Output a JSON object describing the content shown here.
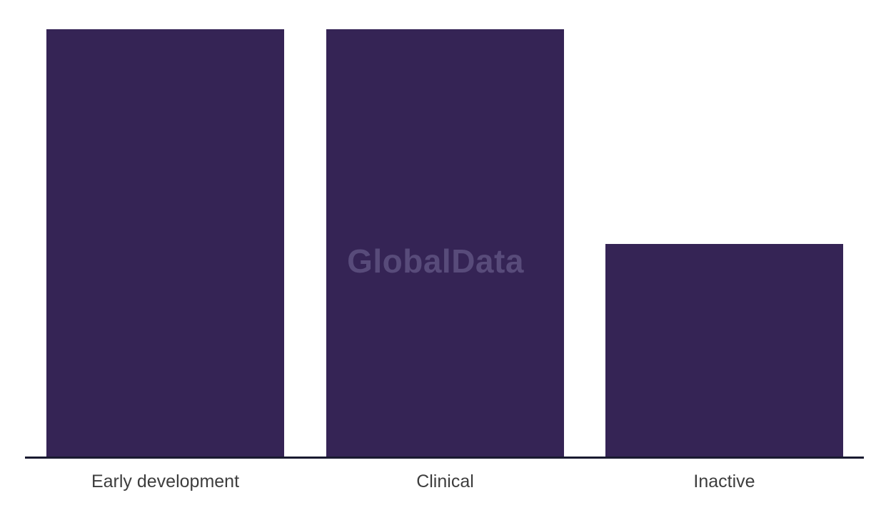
{
  "chart_data": {
    "type": "bar",
    "categories": [
      "Early development",
      "Clinical",
      "Inactive"
    ],
    "values": [
      100,
      100,
      49.8
    ],
    "title": "",
    "xlabel": "",
    "ylabel": "",
    "ylim": [
      0,
      100
    ],
    "grid": false,
    "legend": "none",
    "y_axis_shown": false,
    "bar_color": "#352455",
    "axis_line_color": "#191a30",
    "label_color": "#3d3d3d",
    "watermark": {
      "text": "GlobalData",
      "color": "#584b7a"
    }
  }
}
